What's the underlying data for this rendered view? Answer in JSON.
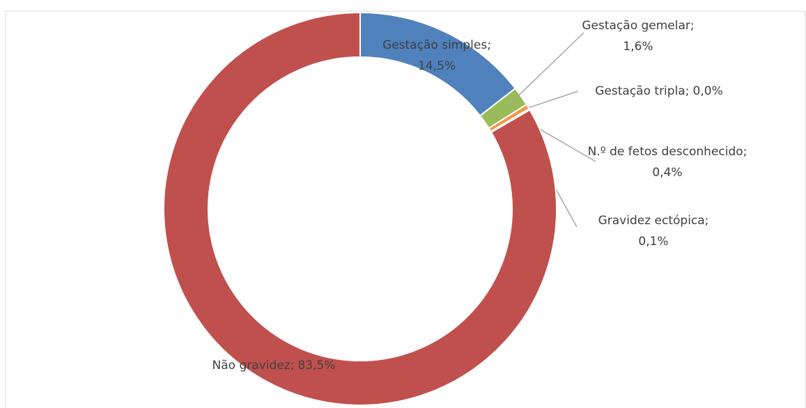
{
  "chart_data": {
    "type": "donut",
    "categories": [
      "Gestação simples",
      "Gestação gemelar",
      "Gestação tripla",
      "N.º de fetos desconhecido",
      "Gravidez ectópica",
      "Não gravidez"
    ],
    "values": [
      14.5,
      1.6,
      0.0,
      0.4,
      0.1,
      83.5
    ],
    "value_labels": [
      "14,5%",
      "1,6%",
      "0,0%",
      "0,4%",
      "0,1%",
      "83,5%"
    ],
    "colors": [
      "#4f81bd",
      "#9bbb59",
      "#8064a2",
      "#f79646",
      "#4bacc6",
      "#c0504d"
    ]
  }
}
